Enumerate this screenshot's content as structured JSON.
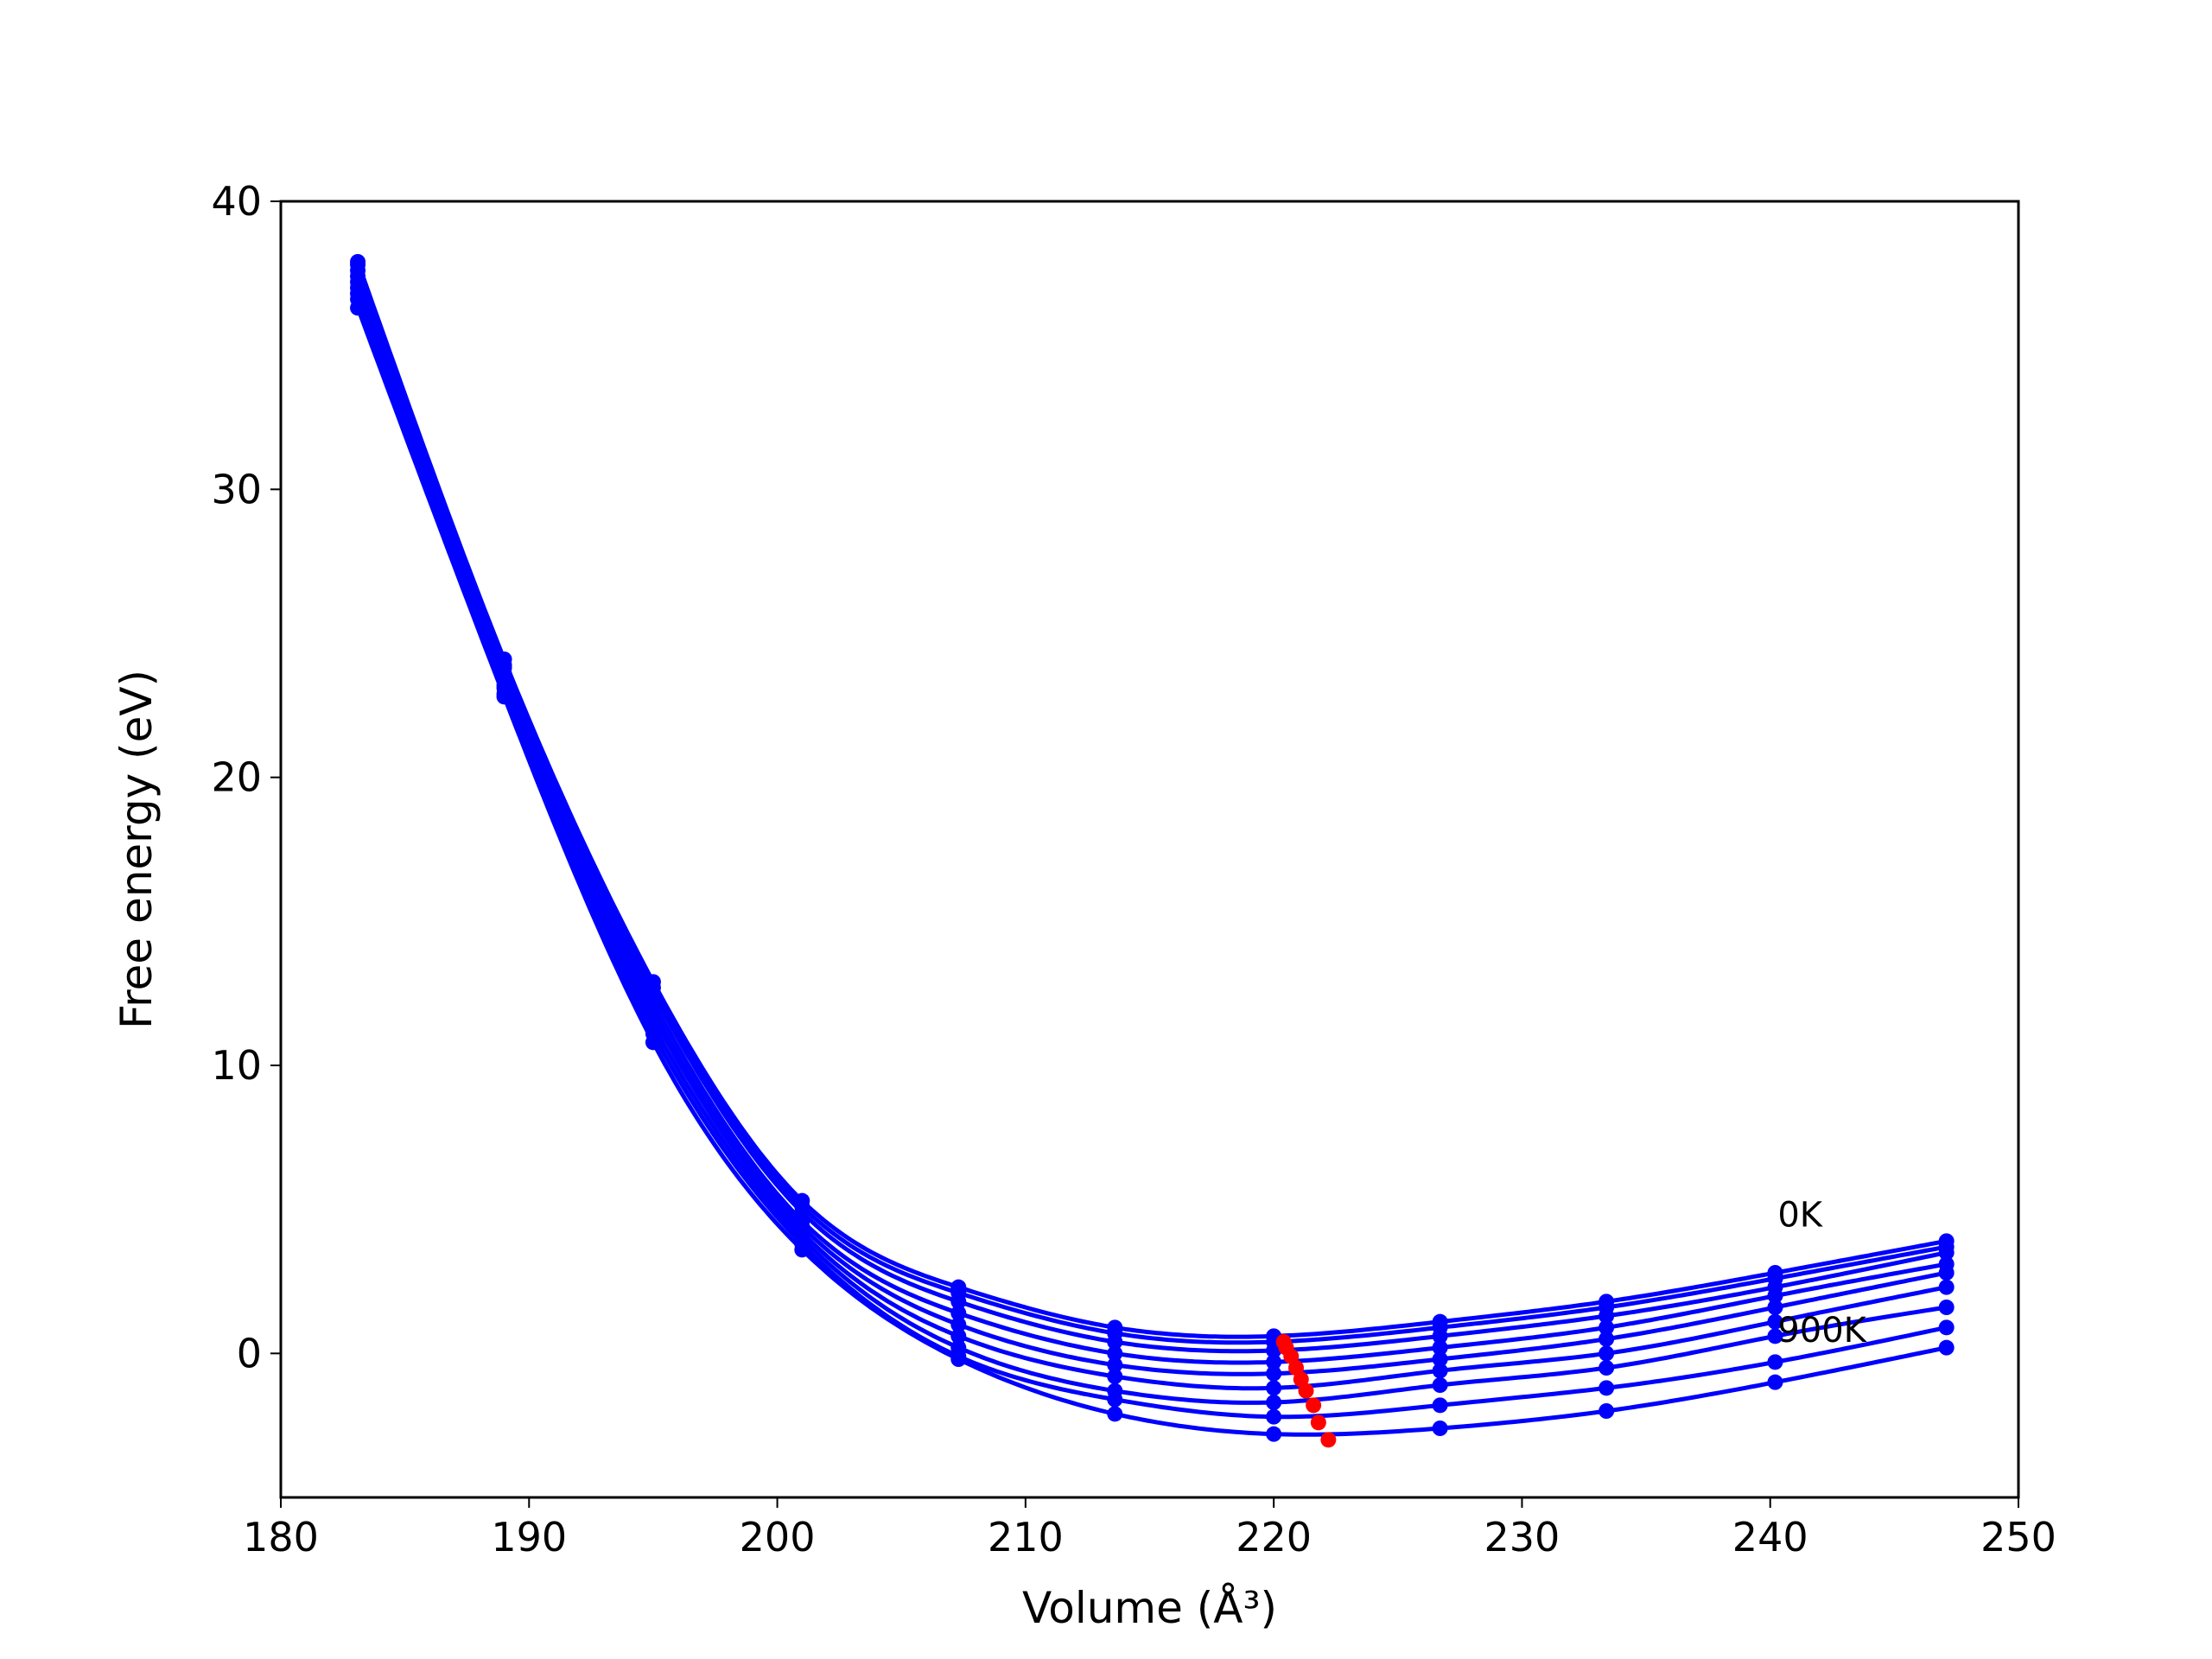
{
  "chart_data": {
    "type": "line",
    "xlabel": "Volume (Å³)",
    "ylabel": "Free energy (eV)",
    "xlim": [
      180,
      250
    ],
    "ylim": [
      -5,
      40
    ],
    "xticks": [
      180,
      190,
      200,
      210,
      220,
      230,
      240,
      250
    ],
    "yticks": [
      0,
      10,
      20,
      30,
      40
    ],
    "grid": false,
    "colors": {
      "curves": "#0000ff",
      "minima": "#ff0000",
      "axes": "#000000"
    },
    "annotations": [
      {
        "text": "0K",
        "x": 240.3,
        "y": 4.4
      },
      {
        "text": "900K",
        "x": 240.3,
        "y": 0.4
      }
    ],
    "volumes": [
      183.1,
      189.0,
      195.0,
      201.0,
      207.3,
      213.6,
      220.0,
      226.7,
      233.4,
      240.2,
      247.1
    ],
    "series": [
      {
        "values": [
          37.9,
          24.1,
          12.9,
          5.3,
          2.3,
          0.9,
          0.6,
          1.1,
          1.8,
          2.8,
          3.9
        ]
      },
      {
        "values": [
          37.8,
          23.9,
          12.7,
          5.1,
          2.1,
          0.7,
          0.4,
          0.9,
          1.6,
          2.6,
          3.7
        ]
      },
      {
        "values": [
          37.6,
          23.8,
          12.5,
          4.9,
          1.8,
          0.4,
          0.1,
          0.6,
          1.3,
          2.3,
          3.5
        ]
      },
      {
        "values": [
          37.4,
          23.6,
          12.2,
          4.6,
          1.4,
          0.0,
          -0.3,
          0.2,
          0.9,
          2.0,
          3.1
        ]
      },
      {
        "values": [
          37.2,
          23.4,
          11.9,
          4.4,
          1.0,
          -0.4,
          -0.7,
          -0.2,
          0.5,
          1.6,
          2.8
        ]
      },
      {
        "values": [
          37.0,
          23.2,
          11.7,
          4.2,
          0.6,
          -0.8,
          -1.2,
          -0.6,
          0.0,
          1.1,
          2.3
        ]
      },
      {
        "values": [
          36.8,
          23.1,
          11.4,
          4.0,
          0.2,
          -1.3,
          -1.7,
          -1.1,
          -0.5,
          0.6,
          1.6
        ]
      },
      {
        "values": [
          36.6,
          22.9,
          11.1,
          3.8,
          -0.1,
          -1.6,
          -2.2,
          -1.8,
          -1.2,
          -0.3,
          0.9
        ]
      },
      {
        "values": [
          36.3,
          22.8,
          10.8,
          3.6,
          -0.2,
          -2.1,
          -2.8,
          -2.6,
          -2.0,
          -1.0,
          0.2
        ]
      }
    ],
    "minima": [
      {
        "x": 220.4,
        "y": 0.4
      },
      {
        "x": 220.5,
        "y": 0.2
      },
      {
        "x": 220.7,
        "y": -0.1
      },
      {
        "x": 220.9,
        "y": -0.5
      },
      {
        "x": 221.1,
        "y": -0.9
      },
      {
        "x": 221.3,
        "y": -1.3
      },
      {
        "x": 221.6,
        "y": -1.8
      },
      {
        "x": 221.8,
        "y": -2.4
      },
      {
        "x": 222.2,
        "y": -3.0
      }
    ]
  }
}
